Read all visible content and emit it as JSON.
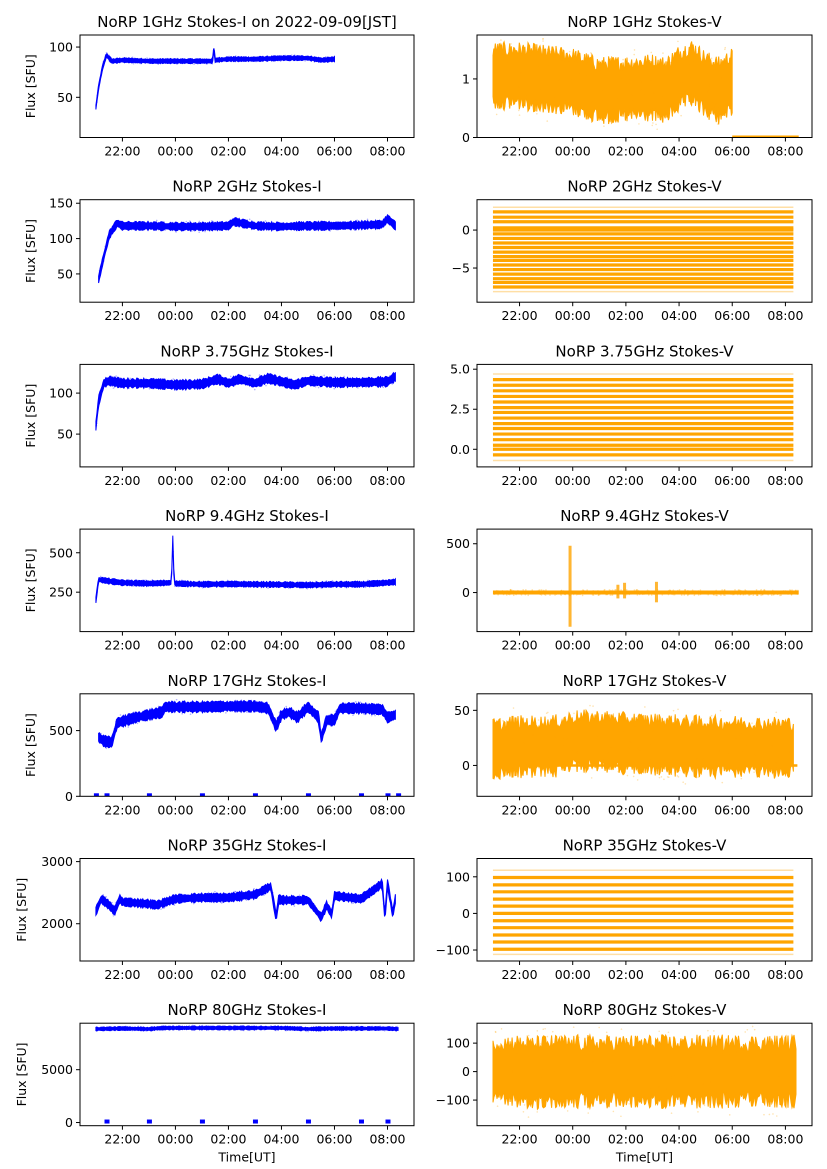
{
  "figure": {
    "time_ticks": [
      "22:00",
      "00:00",
      "02:00",
      "04:00",
      "06:00",
      "08:00"
    ],
    "colors": {
      "stokes_i": "#0000ff",
      "stokes_v": "#ffa500"
    }
  },
  "chart_data": [
    {
      "type": "scatter",
      "panel": "row1-left",
      "title": "NoRP 1GHz Stokes-I on 2022-09-09[JST]",
      "xlabel": "",
      "ylabel": "Flux [SFU]",
      "xlim": [
        20.4,
        33.0
      ],
      "ylim": [
        10,
        112
      ],
      "yticks": [
        50,
        100
      ],
      "ytick_labels": [
        "50",
        "100"
      ],
      "color": "#0000ff",
      "grid": false,
      "x": [
        21.0,
        21.1,
        21.25,
        21.4,
        21.6,
        22.0,
        23.0,
        24.0,
        25.0,
        25.4,
        25.45,
        25.5,
        26.0,
        27.0,
        28.0,
        29.0,
        29.5,
        30.0
      ],
      "y": [
        40,
        60,
        80,
        92,
        86,
        87,
        86,
        86,
        86,
        86,
        99,
        87,
        88,
        88,
        89,
        89,
        87,
        88
      ],
      "band": 2
    },
    {
      "type": "scatter",
      "panel": "row1-right",
      "title": "NoRP 1GHz Stokes-V",
      "xlabel": "",
      "ylabel": "",
      "xlim": [
        20.4,
        33.0
      ],
      "ylim": [
        0,
        1.75
      ],
      "yticks": [
        0,
        1
      ],
      "ytick_labels": [
        "0",
        "1"
      ],
      "color": "#ffa500",
      "grid": false,
      "x": [
        21.0,
        22.0,
        23.0,
        24.0,
        25.0,
        26.0,
        27.0,
        27.5,
        28.0,
        28.5,
        29.0,
        29.5,
        30.0
      ],
      "y": [
        1.05,
        1.05,
        1.0,
        0.95,
        0.8,
        0.82,
        0.85,
        0.8,
        1.0,
        1.1,
        0.9,
        0.8,
        0.95
      ],
      "band": 0.45,
      "zero_line_range": [
        30.0,
        32.5
      ]
    },
    {
      "type": "scatter",
      "panel": "row2-left",
      "title": "NoRP 2GHz Stokes-I",
      "xlabel": "",
      "ylabel": "Flux [SFU]",
      "xlim": [
        20.4,
        33.0
      ],
      "ylim": [
        10,
        155
      ],
      "yticks": [
        50,
        100,
        150
      ],
      "ytick_labels": [
        "50",
        "100",
        "150"
      ],
      "color": "#0000ff",
      "grid": false,
      "x": [
        21.1,
        21.3,
        21.5,
        21.8,
        22.0,
        23.0,
        24.0,
        25.0,
        26.0,
        26.2,
        27.0,
        28.0,
        29.0,
        30.0,
        31.0,
        31.8,
        32.0,
        32.3
      ],
      "y": [
        42,
        75,
        105,
        122,
        118,
        118,
        117,
        117,
        118,
        124,
        118,
        117,
        118,
        118,
        119,
        120,
        128,
        118
      ],
      "band": 5
    },
    {
      "type": "scatter",
      "panel": "row2-right",
      "title": "NoRP 2GHz Stokes-V",
      "xlabel": "",
      "ylabel": "",
      "xlim": [
        20.4,
        33.0
      ],
      "ylim": [
        -9.5,
        4.0
      ],
      "yticks": [
        -5,
        0
      ],
      "ytick_labels": [
        "−5",
        "0"
      ],
      "color": "#ffa500",
      "grid": false,
      "levels": [
        3.0,
        2.4,
        1.7,
        1.1,
        0.3,
        0,
        -0.5,
        -1.1,
        -1.7,
        -2.3,
        -2.9,
        -3.5,
        -4.0,
        -4.6,
        -5.2,
        -5.8,
        -6.4,
        -6.9,
        -7.5,
        -8.1
      ],
      "x_range": [
        21.0,
        32.3
      ]
    },
    {
      "type": "scatter",
      "panel": "row3-left",
      "title": "NoRP 3.75GHz Stokes-I",
      "xlabel": "",
      "ylabel": "Flux [SFU]",
      "xlim": [
        20.4,
        33.0
      ],
      "ylim": [
        10,
        135
      ],
      "yticks": [
        50,
        100
      ],
      "ytick_labels": [
        "50",
        "100"
      ],
      "color": "#0000ff",
      "grid": false,
      "x": [
        21.0,
        21.1,
        21.3,
        21.5,
        22.0,
        23.0,
        24.0,
        25.0,
        25.6,
        26.0,
        26.4,
        27.0,
        27.5,
        28.0,
        28.5,
        29.0,
        30.0,
        31.0,
        32.0,
        32.3
      ],
      "y": [
        60,
        90,
        112,
        115,
        112,
        112,
        110,
        111,
        117,
        112,
        117,
        112,
        118,
        114,
        110,
        115,
        113,
        113,
        114,
        120
      ],
      "band": 5
    },
    {
      "type": "scatter",
      "panel": "row3-right",
      "title": "NoRP 3.75GHz Stokes-V",
      "xlabel": "",
      "ylabel": "",
      "xlim": [
        20.4,
        33.0
      ],
      "ylim": [
        -1.1,
        5.3
      ],
      "yticks": [
        0.0,
        2.5,
        5.0
      ],
      "ytick_labels": [
        "0.0",
        "2.5",
        "5.0"
      ],
      "color": "#ffa500",
      "grid": false,
      "levels": [
        4.7,
        4.35,
        4.0,
        3.65,
        3.3,
        2.95,
        2.6,
        2.3,
        1.95,
        1.6,
        1.3,
        0.95,
        0.6,
        0.25,
        0,
        -0.35,
        -0.7
      ],
      "x_range": [
        21.0,
        32.3
      ]
    },
    {
      "type": "scatter",
      "panel": "row4-left",
      "title": "NoRP 9.4GHz Stokes-I",
      "xlabel": "",
      "ylabel": "Flux [SFU]",
      "xlim": [
        20.4,
        33.0
      ],
      "ylim": [
        0,
        650
      ],
      "yticks": [
        250,
        500
      ],
      "ytick_labels": [
        "250",
        "500"
      ],
      "color": "#0000ff",
      "grid": false,
      "x": [
        21.0,
        21.1,
        21.5,
        22.0,
        23.0,
        23.85,
        23.9,
        23.95,
        24.0,
        25.0,
        26.0,
        27.0,
        28.0,
        29.0,
        30.0,
        31.0,
        32.0,
        32.3
      ],
      "y": [
        200,
        330,
        320,
        310,
        305,
        310,
        600,
        310,
        305,
        300,
        302,
        300,
        298,
        295,
        300,
        300,
        310,
        315
      ],
      "band": 15
    },
    {
      "type": "scatter",
      "panel": "row4-right",
      "title": "NoRP 9.4GHz Stokes-V",
      "xlabel": "",
      "ylabel": "",
      "xlim": [
        20.4,
        33.0
      ],
      "ylim": [
        -400,
        650
      ],
      "yticks": [
        0,
        500
      ],
      "ytick_labels": [
        "0",
        "500"
      ],
      "color": "#ffa500",
      "grid": false,
      "baseline": 0,
      "x_range": [
        21.0,
        32.5
      ],
      "spikes": [
        {
          "x": 23.9,
          "lo": -350,
          "hi": 480
        },
        {
          "x": 25.7,
          "lo": -60,
          "hi": 80
        },
        {
          "x": 25.95,
          "lo": -60,
          "hi": 100
        },
        {
          "x": 27.15,
          "lo": -100,
          "hi": 110
        }
      ]
    },
    {
      "type": "scatter",
      "panel": "row5-left",
      "title": "NoRP 17GHz Stokes-I",
      "xlabel": "",
      "ylabel": "Flux [SFU]",
      "xlim": [
        20.4,
        33.0
      ],
      "ylim": [
        0,
        780
      ],
      "yticks": [
        0,
        500
      ],
      "ytick_labels": [
        "0",
        "500"
      ],
      "color": "#0000ff",
      "grid": false,
      "x": [
        21.1,
        21.3,
        21.6,
        21.8,
        22.0,
        22.5,
        23.0,
        23.5,
        23.6,
        24.0,
        25.0,
        26.0,
        27.0,
        27.5,
        27.8,
        28.0,
        28.3,
        28.6,
        29.0,
        29.4,
        29.5,
        29.7,
        30.0,
        30.2,
        31.0,
        31.8,
        32.0,
        32.3
      ],
      "y": [
        450,
        420,
        410,
        560,
        570,
        600,
        620,
        640,
        680,
        680,
        680,
        685,
        685,
        670,
        530,
        620,
        640,
        600,
        680,
        600,
        440,
        580,
        580,
        670,
        670,
        660,
        600,
        620
      ],
      "band": 35,
      "zero_markers": [
        21.0,
        21.4,
        23.0,
        25.0,
        27.0,
        29.0,
        31.0,
        32.0,
        32.4
      ]
    },
    {
      "type": "scatter",
      "panel": "row5-right",
      "title": "NoRP 17GHz Stokes-V",
      "xlabel": "",
      "ylabel": "",
      "xlim": [
        20.4,
        33.0
      ],
      "ylim": [
        -28,
        65
      ],
      "yticks": [
        0,
        50
      ],
      "ytick_labels": [
        "0",
        "50"
      ],
      "color": "#ffa500",
      "grid": false,
      "x": [
        21.0,
        21.5,
        21.6,
        22.0,
        23.0,
        23.5,
        24.0,
        25.0,
        26.0,
        27.0,
        28.0,
        29.0,
        30.0,
        31.0,
        32.0,
        32.3
      ],
      "y": [
        15,
        15,
        17,
        17,
        17,
        18,
        22,
        22,
        20,
        19,
        18,
        17,
        17,
        16,
        16,
        16
      ],
      "band": 22,
      "baseline": 0
    },
    {
      "type": "scatter",
      "panel": "row6-left",
      "title": "NoRP 35GHz Stokes-I",
      "xlabel": "",
      "ylabel": "Flux [SFU]",
      "xlim": [
        20.4,
        33.0
      ],
      "ylim": [
        1400,
        3050
      ],
      "yticks": [
        2000,
        3000
      ],
      "ytick_labels": [
        "2000",
        "3000"
      ],
      "color": "#0000ff",
      "grid": false,
      "x": [
        21.0,
        21.2,
        21.5,
        21.7,
        21.9,
        22.0,
        23.0,
        23.3,
        24.0,
        25.0,
        26.0,
        27.0,
        27.6,
        27.8,
        27.9,
        28.0,
        29.0,
        29.5,
        29.7,
        29.9,
        30.0,
        31.0,
        31.5,
        31.8,
        31.9,
        32.0,
        32.2,
        32.3
      ],
      "y": [
        2200,
        2400,
        2300,
        2200,
        2400,
        2350,
        2320,
        2300,
        2400,
        2420,
        2420,
        2470,
        2600,
        2100,
        2400,
        2380,
        2380,
        2100,
        2300,
        2150,
        2450,
        2400,
        2550,
        2650,
        2100,
        2650,
        2150,
        2400
      ],
      "band": 60
    },
    {
      "type": "scatter",
      "panel": "row6-right",
      "title": "NoRP 35GHz Stokes-V",
      "xlabel": "",
      "ylabel": "",
      "xlim": [
        20.4,
        33.0
      ],
      "ylim": [
        -130,
        150
      ],
      "yticks": [
        -100,
        0,
        100
      ],
      "ytick_labels": [
        "−100",
        "0",
        "100"
      ],
      "color": "#ffa500",
      "grid": false,
      "levels": [
        118,
        98,
        78,
        59,
        39,
        20,
        0,
        -20,
        -39,
        -59,
        -78,
        -98,
        -112
      ],
      "x_range": [
        21.0,
        32.3
      ]
    },
    {
      "type": "scatter",
      "panel": "row7-left",
      "title": "NoRP 80GHz Stokes-I",
      "xlabel": "Time[UT]",
      "ylabel": "Flux [SFU]",
      "xlim": [
        20.4,
        33.0
      ],
      "ylim": [
        -300,
        9400
      ],
      "yticks": [
        0,
        5000
      ],
      "ytick_labels": [
        "0",
        "5000"
      ],
      "color": "#0000ff",
      "grid": false,
      "x": [
        21.0,
        22.0,
        23.0,
        23.5,
        24.0,
        26.0,
        28.0,
        29.0,
        30.0,
        32.0,
        32.4
      ],
      "y": [
        8850,
        8900,
        8850,
        8950,
        8950,
        8950,
        8950,
        8850,
        8900,
        8900,
        8850
      ],
      "band": 150,
      "zero_markers": [
        21.4,
        23.0,
        25.0,
        27.0,
        29.0,
        31.0,
        32.0
      ]
    },
    {
      "type": "scatter",
      "panel": "row7-right",
      "title": "NoRP 80GHz Stokes-V",
      "xlabel": "Time[UT]",
      "ylabel": "",
      "xlim": [
        20.4,
        33.0
      ],
      "ylim": [
        -190,
        170
      ],
      "yticks": [
        -100,
        0,
        100
      ],
      "ytick_labels": [
        "−100",
        "0",
        "100"
      ],
      "color": "#ffa500",
      "grid": false,
      "x": [
        21.0,
        22.0,
        22.5,
        23.0,
        24.0,
        26.0,
        28.0,
        28.9,
        29.2,
        30.0,
        32.4
      ],
      "y": [
        0,
        0,
        -5,
        0,
        0,
        0,
        0,
        0,
        0,
        0,
        0
      ],
      "band": 100
    }
  ]
}
